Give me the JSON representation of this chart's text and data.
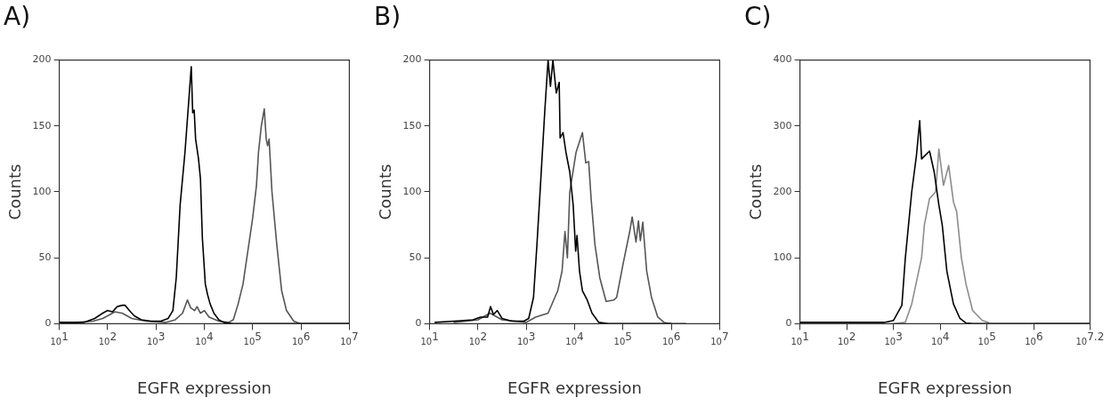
{
  "chart_data": [
    {
      "type": "line",
      "title": "A)",
      "xlabel": "EGFR expression",
      "ylabel": "Counts",
      "log": "x",
      "grid": false,
      "legend": false,
      "marker": "none",
      "xlim": [
        10,
        10000000
      ],
      "xticks": [
        {
          "value": 10,
          "label": "10$^{1}$"
        },
        {
          "value": 100,
          "label": "10$^{2}$"
        },
        {
          "value": 1000,
          "label": "10$^{3}$"
        },
        {
          "value": 10000,
          "label": "10$^{4}$"
        },
        {
          "value": 100000,
          "label": "10$^{5}$"
        },
        {
          "value": 1000000,
          "label": "10$^{6}$"
        },
        {
          "value": 10000000,
          "label": "10$^{7}$"
        }
      ],
      "ylim": [
        0,
        200
      ],
      "yticks": [
        0,
        50,
        100,
        150,
        200
      ],
      "series": [
        {
          "color": "#000000",
          "x": [
            10,
            32,
            54,
            79,
            100,
            126,
            158,
            200,
            229,
            282,
            355,
            500,
            794,
            1260,
            1780,
            2240,
            2630,
            3160,
            3980,
            4680,
            5370,
            5750,
            6170,
            6610,
            7590,
            8320,
            9120,
            10500,
            11700,
            13200,
            15800,
            20000,
            25100,
            39800,
            100000,
            1000000,
            10000000
          ],
          "values": [
            1,
            1,
            4,
            8,
            10,
            9,
            13,
            14,
            14,
            10,
            6,
            3,
            2,
            2,
            4,
            10,
            35,
            90,
            130,
            165,
            195,
            160,
            162,
            140,
            125,
            110,
            65,
            30,
            22,
            15,
            8,
            3,
            1,
            0,
            0,
            0,
            0
          ]
        },
        {
          "color": "#555555",
          "x": [
            10,
            50,
            79,
            100,
            141,
            200,
            316,
            631,
            1580,
            2510,
            3550,
            4470,
            5250,
            6310,
            7080,
            8320,
            10000,
            12600,
            20000,
            31600,
            39800,
            50100,
            63100,
            79400,
            100000,
            120000,
            132000,
            151000,
            174000,
            191000,
            204000,
            219000,
            251000,
            316000,
            398000,
            501000,
            708000,
            1000000,
            10000000
          ],
          "values": [
            0,
            2,
            4,
            6,
            9,
            8,
            4,
            2,
            1,
            3,
            8,
            18,
            12,
            10,
            13,
            8,
            10,
            5,
            2,
            1,
            3,
            15,
            30,
            55,
            80,
            105,
            130,
            150,
            163,
            140,
            135,
            140,
            100,
            60,
            25,
            10,
            2,
            0,
            0
          ]
        }
      ]
    },
    {
      "type": "line",
      "title": "B)",
      "xlabel": "EGFR expression",
      "ylabel": "Counts",
      "log": "x",
      "grid": false,
      "legend": false,
      "marker": "none",
      "xlim": [
        10,
        10000000
      ],
      "xticks": [
        {
          "value": 10,
          "label": "10$^{1}$"
        },
        {
          "value": 100,
          "label": "10$^{2}$"
        },
        {
          "value": 1000,
          "label": "10$^{3}$"
        },
        {
          "value": 10000,
          "label": "10$^{4}$"
        },
        {
          "value": 100000,
          "label": "10$^{5}$"
        },
        {
          "value": 1000000,
          "label": "10$^{6}$"
        },
        {
          "value": 10000000,
          "label": "10$^{7}$"
        }
      ],
      "ylim": [
        0,
        200
      ],
      "yticks": [
        0,
        50,
        100,
        150,
        200
      ],
      "series": [
        {
          "color": "#000000",
          "x": [
            13,
            32,
            79,
            112,
            158,
            182,
            209,
            251,
            316,
            501,
            891,
            1120,
            1410,
            1660,
            2000,
            2400,
            2820,
            3160,
            3550,
            4170,
            4790,
            5010,
            5750,
            6610,
            7940,
            9330,
            10500,
            11200,
            12600,
            14500,
            18200,
            22900,
            31600,
            50100,
            1000000
          ],
          "values": [
            1,
            2,
            3,
            5,
            5,
            13,
            7,
            10,
            4,
            2,
            2,
            4,
            20,
            60,
            110,
            160,
            200,
            180,
            200,
            175,
            183,
            141,
            145,
            130,
            115,
            90,
            55,
            67,
            40,
            25,
            18,
            8,
            1,
            0,
            0
          ]
        },
        {
          "color": "#555555",
          "x": [
            32,
            100,
            178,
            316,
            1000,
            1550,
            2820,
            4470,
            5500,
            6310,
            7080,
            7940,
            10700,
            14500,
            17000,
            19500,
            21900,
            26300,
            33100,
            44700,
            64600,
            74100,
            100000,
            138000,
            155000,
            186000,
            209000,
            229000,
            257000,
            309000,
            389000,
            525000,
            708000,
            955000,
            2000000
          ],
          "values": [
            1,
            3,
            8,
            3,
            1,
            5,
            8,
            25,
            40,
            70,
            50,
            100,
            130,
            145,
            122,
            123,
            95,
            60,
            35,
            17,
            18,
            20,
            45,
            70,
            81,
            62,
            78,
            63,
            77,
            40,
            20,
            5,
            1,
            0,
            0
          ]
        }
      ]
    },
    {
      "type": "line",
      "title": "C)",
      "xlabel": "EGFR expression",
      "ylabel": "Counts",
      "log": "x",
      "grid": false,
      "legend": false,
      "marker": "none",
      "xlim": [
        10,
        15848932
      ],
      "xticks": [
        {
          "value": 10,
          "label": "10$^{1}$"
        },
        {
          "value": 100,
          "label": "10$^{2}$"
        },
        {
          "value": 1000,
          "label": "10$^{3}$"
        },
        {
          "value": 10000,
          "label": "10$^{4}$"
        },
        {
          "value": 100000,
          "label": "10$^{5}$"
        },
        {
          "value": 1000000,
          "label": "10$^{6}$"
        },
        {
          "value": 15848932,
          "label": "10$^{7.2}$"
        }
      ],
      "ylim": [
        0,
        400
      ],
      "yticks": [
        0,
        100,
        200,
        300,
        400
      ],
      "series": [
        {
          "color": "#000000",
          "x": [
            10,
            100,
            631,
            1000,
            1510,
            1780,
            2450,
            3090,
            3630,
            3980,
            5890,
            7410,
            9330,
            11000,
            13800,
            19100,
            26300,
            35500,
            49000,
            1000000,
            15800000
          ],
          "values": [
            2,
            2,
            2,
            5,
            28,
            98,
            200,
            255,
            308,
            250,
            262,
            230,
            180,
            150,
            80,
            30,
            8,
            1,
            0,
            0,
            0
          ]
        },
        {
          "color": "#8c8c8c",
          "x": [
            1000,
            1780,
            2450,
            3980,
            4570,
            5890,
            7940,
            9330,
            11700,
            15100,
            19100,
            22400,
            28200,
            35500,
            49000,
            79400,
            107000,
            240000,
            1000000,
            15800000
          ],
          "values": [
            0,
            2,
            30,
            100,
            150,
            190,
            200,
            265,
            210,
            240,
            185,
            170,
            100,
            60,
            20,
            5,
            2,
            null,
            0,
            0
          ]
        }
      ]
    }
  ]
}
